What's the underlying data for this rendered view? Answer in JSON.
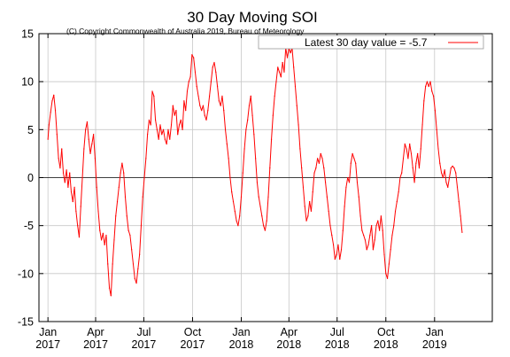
{
  "chart_data": {
    "type": "line",
    "title": "30 Day Moving SOI",
    "subtitle": "(C) Copyright Commonwealth of Australia 2019, Bureau of Meteorology",
    "legend": {
      "label": "Latest 30 day value = -5.7",
      "position": "top-right"
    },
    "xlabel": "",
    "ylabel": "",
    "ylim": [
      -15,
      15
    ],
    "yticks": [
      -15,
      -10,
      -5,
      0,
      5,
      10,
      15
    ],
    "xlim": [
      "2016-12-15",
      "2019-04-20"
    ],
    "xticks": [
      {
        "date": "2017-01-01",
        "month": "Jan",
        "year": "2017"
      },
      {
        "date": "2017-04-01",
        "month": "Apr",
        "year": "2017"
      },
      {
        "date": "2017-07-01",
        "month": "Jul",
        "year": "2017"
      },
      {
        "date": "2017-10-01",
        "month": "Oct",
        "year": "2017"
      },
      {
        "date": "2018-01-01",
        "month": "Jan",
        "year": "2018"
      },
      {
        "date": "2018-04-01",
        "month": "Apr",
        "year": "2018"
      },
      {
        "date": "2018-07-01",
        "month": "Jul",
        "year": "2018"
      },
      {
        "date": "2018-10-01",
        "month": "Oct",
        "year": "2018"
      },
      {
        "date": "2019-01-01",
        "month": "Jan",
        "year": "2019"
      }
    ],
    "grid": true,
    "series": [
      {
        "color": "#ff0000",
        "points": [
          [
            "2017-01-01",
            4.0
          ],
          [
            "2017-01-03",
            5.5
          ],
          [
            "2017-01-06",
            6.8
          ],
          [
            "2017-01-09",
            8.0
          ],
          [
            "2017-01-12",
            8.6
          ],
          [
            "2017-01-15",
            7.0
          ],
          [
            "2017-01-18",
            4.5
          ],
          [
            "2017-01-21",
            2.0
          ],
          [
            "2017-01-24",
            1.0
          ],
          [
            "2017-01-27",
            3.0
          ],
          [
            "2017-01-30",
            0.5
          ],
          [
            "2017-02-02",
            -0.5
          ],
          [
            "2017-02-05",
            0.8
          ],
          [
            "2017-02-08",
            -1.0
          ],
          [
            "2017-02-11",
            0.5
          ],
          [
            "2017-02-14",
            -1.5
          ],
          [
            "2017-02-17",
            -2.5
          ],
          [
            "2017-02-20",
            -1.0
          ],
          [
            "2017-02-23",
            -3.5
          ],
          [
            "2017-02-26",
            -5.0
          ],
          [
            "2017-03-01",
            -6.2
          ],
          [
            "2017-03-04",
            -3.0
          ],
          [
            "2017-03-07",
            0.0
          ],
          [
            "2017-03-10",
            3.0
          ],
          [
            "2017-03-13",
            5.0
          ],
          [
            "2017-03-16",
            5.8
          ],
          [
            "2017-03-19",
            4.0
          ],
          [
            "2017-03-22",
            2.5
          ],
          [
            "2017-03-25",
            3.5
          ],
          [
            "2017-03-28",
            4.5
          ],
          [
            "2017-03-31",
            2.0
          ],
          [
            "2017-04-03",
            -1.0
          ],
          [
            "2017-04-06",
            -3.5
          ],
          [
            "2017-04-09",
            -5.5
          ],
          [
            "2017-04-12",
            -6.5
          ],
          [
            "2017-04-15",
            -5.8
          ],
          [
            "2017-04-18",
            -7.0
          ],
          [
            "2017-04-21",
            -6.0
          ],
          [
            "2017-04-24",
            -9.0
          ],
          [
            "2017-04-27",
            -11.5
          ],
          [
            "2017-04-30",
            -12.3
          ],
          [
            "2017-05-03",
            -9.0
          ],
          [
            "2017-05-06",
            -6.5
          ],
          [
            "2017-05-09",
            -4.0
          ],
          [
            "2017-05-12",
            -2.5
          ],
          [
            "2017-05-15",
            -1.0
          ],
          [
            "2017-05-18",
            0.5
          ],
          [
            "2017-05-21",
            1.5
          ],
          [
            "2017-05-24",
            0.5
          ],
          [
            "2017-05-27",
            -2.0
          ],
          [
            "2017-05-30",
            -4.0
          ],
          [
            "2017-06-02",
            -5.5
          ],
          [
            "2017-06-05",
            -6.0
          ],
          [
            "2017-06-08",
            -7.5
          ],
          [
            "2017-06-11",
            -9.0
          ],
          [
            "2017-06-14",
            -10.5
          ],
          [
            "2017-06-17",
            -11.0
          ],
          [
            "2017-06-20",
            -9.5
          ],
          [
            "2017-06-23",
            -8.0
          ],
          [
            "2017-06-26",
            -5.0
          ],
          [
            "2017-06-29",
            -2.0
          ],
          [
            "2017-07-02",
            0.0
          ],
          [
            "2017-07-05",
            2.0
          ],
          [
            "2017-07-08",
            4.5
          ],
          [
            "2017-07-11",
            6.0
          ],
          [
            "2017-07-14",
            5.5
          ],
          [
            "2017-07-17",
            9.0
          ],
          [
            "2017-07-20",
            8.5
          ],
          [
            "2017-07-23",
            6.0
          ],
          [
            "2017-07-26",
            5.0
          ],
          [
            "2017-07-29",
            4.0
          ],
          [
            "2017-08-01",
            5.5
          ],
          [
            "2017-08-04",
            4.5
          ],
          [
            "2017-08-07",
            5.0
          ],
          [
            "2017-08-10",
            4.0
          ],
          [
            "2017-08-13",
            3.5
          ],
          [
            "2017-08-16",
            5.0
          ],
          [
            "2017-08-19",
            4.0
          ],
          [
            "2017-08-22",
            5.5
          ],
          [
            "2017-08-25",
            7.5
          ],
          [
            "2017-08-28",
            6.5
          ],
          [
            "2017-08-31",
            7.0
          ],
          [
            "2017-09-03",
            4.5
          ],
          [
            "2017-09-06",
            5.5
          ],
          [
            "2017-09-09",
            6.0
          ],
          [
            "2017-09-12",
            5.0
          ],
          [
            "2017-09-15",
            8.0
          ],
          [
            "2017-09-18",
            7.0
          ],
          [
            "2017-09-21",
            9.0
          ],
          [
            "2017-09-24",
            10.0
          ],
          [
            "2017-09-27",
            10.5
          ],
          [
            "2017-09-30",
            12.8
          ],
          [
            "2017-10-03",
            12.5
          ],
          [
            "2017-10-06",
            11.0
          ],
          [
            "2017-10-09",
            9.5
          ],
          [
            "2017-10-12",
            8.5
          ],
          [
            "2017-10-15",
            7.5
          ],
          [
            "2017-10-18",
            7.0
          ],
          [
            "2017-10-21",
            7.5
          ],
          [
            "2017-10-24",
            6.5
          ],
          [
            "2017-10-27",
            6.0
          ],
          [
            "2017-10-30",
            7.0
          ],
          [
            "2017-11-02",
            8.5
          ],
          [
            "2017-11-05",
            10.0
          ],
          [
            "2017-11-08",
            11.5
          ],
          [
            "2017-11-11",
            12.0
          ],
          [
            "2017-11-14",
            11.0
          ],
          [
            "2017-11-17",
            9.5
          ],
          [
            "2017-11-20",
            8.0
          ],
          [
            "2017-11-23",
            7.5
          ],
          [
            "2017-11-26",
            8.5
          ],
          [
            "2017-11-29",
            7.0
          ],
          [
            "2017-12-02",
            5.0
          ],
          [
            "2017-12-05",
            3.5
          ],
          [
            "2017-12-08",
            2.0
          ],
          [
            "2017-12-11",
            0.0
          ],
          [
            "2017-12-14",
            -1.5
          ],
          [
            "2017-12-17",
            -2.5
          ],
          [
            "2017-12-20",
            -3.5
          ],
          [
            "2017-12-23",
            -4.5
          ],
          [
            "2017-12-26",
            -5.0
          ],
          [
            "2017-12-29",
            -4.0
          ],
          [
            "2018-01-01",
            -2.0
          ],
          [
            "2018-01-04",
            0.5
          ],
          [
            "2018-01-07",
            3.0
          ],
          [
            "2018-01-10",
            5.0
          ],
          [
            "2018-01-13",
            6.0
          ],
          [
            "2018-01-16",
            7.5
          ],
          [
            "2018-01-19",
            8.5
          ],
          [
            "2018-01-22",
            6.5
          ],
          [
            "2018-01-25",
            4.5
          ],
          [
            "2018-01-28",
            2.0
          ],
          [
            "2018-01-31",
            -0.5
          ],
          [
            "2018-02-03",
            -2.0
          ],
          [
            "2018-02-06",
            -3.0
          ],
          [
            "2018-02-09",
            -4.0
          ],
          [
            "2018-02-12",
            -5.0
          ],
          [
            "2018-02-15",
            -5.5
          ],
          [
            "2018-02-18",
            -4.5
          ],
          [
            "2018-02-21",
            -2.0
          ],
          [
            "2018-02-24",
            1.0
          ],
          [
            "2018-02-27",
            4.0
          ],
          [
            "2018-03-02",
            6.5
          ],
          [
            "2018-03-05",
            8.5
          ],
          [
            "2018-03-08",
            10.0
          ],
          [
            "2018-03-11",
            11.5
          ],
          [
            "2018-03-14",
            11.0
          ],
          [
            "2018-03-17",
            10.5
          ],
          [
            "2018-03-20",
            12.0
          ],
          [
            "2018-03-23",
            11.0
          ],
          [
            "2018-03-26",
            13.5
          ],
          [
            "2018-03-29",
            12.5
          ],
          [
            "2018-04-01",
            13.5
          ],
          [
            "2018-04-04",
            13.0
          ],
          [
            "2018-04-07",
            13.5
          ],
          [
            "2018-04-10",
            11.5
          ],
          [
            "2018-04-13",
            9.5
          ],
          [
            "2018-04-16",
            7.5
          ],
          [
            "2018-04-19",
            5.5
          ],
          [
            "2018-04-22",
            3.0
          ],
          [
            "2018-04-25",
            1.0
          ],
          [
            "2018-04-28",
            -1.0
          ],
          [
            "2018-05-01",
            -3.0
          ],
          [
            "2018-05-04",
            -4.5
          ],
          [
            "2018-05-07",
            -4.0
          ],
          [
            "2018-05-10",
            -2.5
          ],
          [
            "2018-05-13",
            -3.5
          ],
          [
            "2018-05-16",
            -1.5
          ],
          [
            "2018-05-19",
            0.5
          ],
          [
            "2018-05-22",
            1.0
          ],
          [
            "2018-05-25",
            2.0
          ],
          [
            "2018-05-28",
            1.5
          ],
          [
            "2018-05-31",
            2.5
          ],
          [
            "2018-06-03",
            2.0
          ],
          [
            "2018-06-06",
            1.0
          ],
          [
            "2018-06-09",
            -0.5
          ],
          [
            "2018-06-12",
            -2.0
          ],
          [
            "2018-06-15",
            -3.5
          ],
          [
            "2018-06-18",
            -5.0
          ],
          [
            "2018-06-21",
            -6.0
          ],
          [
            "2018-06-24",
            -7.0
          ],
          [
            "2018-06-27",
            -8.5
          ],
          [
            "2018-06-30",
            -8.0
          ],
          [
            "2018-07-03",
            -7.0
          ],
          [
            "2018-07-06",
            -8.5
          ],
          [
            "2018-07-09",
            -7.5
          ],
          [
            "2018-07-12",
            -5.5
          ],
          [
            "2018-07-15",
            -3.0
          ],
          [
            "2018-07-18",
            -1.0
          ],
          [
            "2018-07-21",
            0.0
          ],
          [
            "2018-07-24",
            -0.5
          ],
          [
            "2018-07-27",
            1.5
          ],
          [
            "2018-07-30",
            2.5
          ],
          [
            "2018-08-02",
            2.0
          ],
          [
            "2018-08-05",
            1.5
          ],
          [
            "2018-08-08",
            -0.5
          ],
          [
            "2018-08-11",
            -2.0
          ],
          [
            "2018-08-14",
            -4.0
          ],
          [
            "2018-08-17",
            -5.5
          ],
          [
            "2018-08-20",
            -6.0
          ],
          [
            "2018-08-23",
            -6.5
          ],
          [
            "2018-08-26",
            -7.5
          ],
          [
            "2018-08-29",
            -7.0
          ],
          [
            "2018-09-01",
            -6.0
          ],
          [
            "2018-09-04",
            -5.0
          ],
          [
            "2018-09-07",
            -7.5
          ],
          [
            "2018-09-10",
            -6.5
          ],
          [
            "2018-09-13",
            -5.0
          ],
          [
            "2018-09-16",
            -4.5
          ],
          [
            "2018-09-19",
            -5.5
          ],
          [
            "2018-09-22",
            -4.0
          ],
          [
            "2018-09-25",
            -5.5
          ],
          [
            "2018-09-28",
            -8.0
          ],
          [
            "2018-10-01",
            -10.0
          ],
          [
            "2018-10-04",
            -10.5
          ],
          [
            "2018-10-07",
            -9.0
          ],
          [
            "2018-10-10",
            -7.5
          ],
          [
            "2018-10-13",
            -6.0
          ],
          [
            "2018-10-16",
            -5.0
          ],
          [
            "2018-10-19",
            -3.5
          ],
          [
            "2018-10-22",
            -2.5
          ],
          [
            "2018-10-25",
            -1.5
          ],
          [
            "2018-10-28",
            0.0
          ],
          [
            "2018-10-31",
            0.5
          ],
          [
            "2018-11-03",
            2.0
          ],
          [
            "2018-11-06",
            3.5
          ],
          [
            "2018-11-09",
            3.0
          ],
          [
            "2018-11-12",
            2.0
          ],
          [
            "2018-11-15",
            3.5
          ],
          [
            "2018-11-18",
            2.5
          ],
          [
            "2018-11-21",
            1.0
          ],
          [
            "2018-11-24",
            -0.5
          ],
          [
            "2018-11-27",
            1.5
          ],
          [
            "2018-11-30",
            2.5
          ],
          [
            "2018-12-03",
            1.0
          ],
          [
            "2018-12-06",
            3.0
          ],
          [
            "2018-12-09",
            5.5
          ],
          [
            "2018-12-12",
            8.0
          ],
          [
            "2018-12-15",
            9.5
          ],
          [
            "2018-12-18",
            10.0
          ],
          [
            "2018-12-21",
            9.5
          ],
          [
            "2018-12-24",
            10.0
          ],
          [
            "2018-12-27",
            9.0
          ],
          [
            "2018-12-30",
            8.5
          ],
          [
            "2019-01-02",
            7.0
          ],
          [
            "2019-01-05",
            5.0
          ],
          [
            "2019-01-08",
            3.0
          ],
          [
            "2019-01-11",
            1.5
          ],
          [
            "2019-01-14",
            0.5
          ],
          [
            "2019-01-17",
            0.0
          ],
          [
            "2019-01-20",
            0.8
          ],
          [
            "2019-01-23",
            -0.5
          ],
          [
            "2019-01-26",
            -1.0
          ],
          [
            "2019-01-29",
            0.0
          ],
          [
            "2019-02-01",
            1.0
          ],
          [
            "2019-02-04",
            1.2
          ],
          [
            "2019-02-07",
            1.0
          ],
          [
            "2019-02-10",
            0.5
          ],
          [
            "2019-02-13",
            -1.0
          ],
          [
            "2019-02-16",
            -2.5
          ],
          [
            "2019-02-19",
            -4.0
          ],
          [
            "2019-02-22",
            -5.7
          ]
        ]
      }
    ]
  }
}
